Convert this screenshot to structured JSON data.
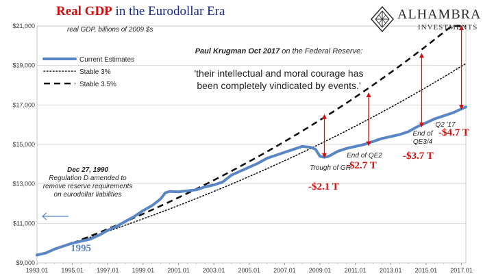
{
  "header": {
    "title_highlight": "Real GDP",
    "title_rest": " in the Eurodollar Era",
    "subtitle": "real GDP, billions of 2009 $s"
  },
  "logo": {
    "name": "ALHAMBRA",
    "sub": "INVESTMENTS",
    "icon": "diamond-emblem-icon"
  },
  "quote": {
    "author": "Paul Krugman Oct 2017",
    "context": " on the Federal Reserve:",
    "text": "'their intellectual and moral courage has been completely vindicated by events.'"
  },
  "note_1990": {
    "date": "Dec 27, 1990",
    "text": "Regulation D amended to remove reserve requirements on eurodollar liabilities"
  },
  "year_1995_label": "1995",
  "chart_data": {
    "type": "line",
    "title": "Real GDP in the Eurodollar Era",
    "subtitle": "real GDP, billions of 2009 $s",
    "xlabel": "",
    "ylabel": "",
    "xlim": [
      "1993.01",
      "2017.01"
    ],
    "ylim": [
      9000,
      21000
    ],
    "x_tick_labels": [
      "1993.01",
      "1995.01",
      "1997.01",
      "1999.01",
      "2001.01",
      "2003.01",
      "2005.01",
      "2007.01",
      "2009.01",
      "2011.01",
      "2013.01",
      "2015.01",
      "2017.01"
    ],
    "y_tick_labels": [
      "$9,000",
      "$11,000",
      "$13,000",
      "$15,000",
      "$17,000",
      "$19,000",
      "$21,000"
    ],
    "y_ticks": [
      9000,
      11000,
      13000,
      15000,
      17000,
      19000,
      21000
    ],
    "grid": true,
    "legend_position": "top-left",
    "series": [
      {
        "name": "Current Estimates",
        "style": "solid",
        "color": "#5a86c4",
        "x": [
          1993.0,
          1993.5,
          1994.0,
          1994.5,
          1995.0,
          1995.5,
          1996.0,
          1996.5,
          1997.0,
          1997.5,
          1998.0,
          1998.5,
          1999.0,
          1999.5,
          2000.0,
          2000.25,
          2000.5,
          2001.0,
          2001.5,
          2002.0,
          2002.5,
          2003.0,
          2003.5,
          2004.0,
          2004.5,
          2005.0,
          2005.5,
          2006.0,
          2006.5,
          2007.0,
          2007.5,
          2008.0,
          2008.5,
          2008.75,
          2009.0,
          2009.25,
          2009.5,
          2010.0,
          2010.5,
          2011.0,
          2011.5,
          2012.0,
          2012.5,
          2013.0,
          2013.5,
          2014.0,
          2014.5,
          2015.0,
          2015.5,
          2016.0,
          2016.5,
          2017.0,
          2017.25
        ],
        "y": [
          9400,
          9500,
          9700,
          9850,
          10000,
          10100,
          10200,
          10400,
          10650,
          10850,
          11100,
          11350,
          11650,
          11900,
          12250,
          12550,
          12620,
          12600,
          12650,
          12700,
          12850,
          12950,
          13100,
          13450,
          13650,
          13850,
          14050,
          14300,
          14450,
          14600,
          14750,
          14900,
          14850,
          14750,
          14400,
          14350,
          14400,
          14650,
          14800,
          14900,
          15000,
          15150,
          15300,
          15400,
          15500,
          15650,
          15900,
          16100,
          16300,
          16450,
          16600,
          16800,
          16900
        ]
      },
      {
        "name": "Stable 3%",
        "style": "dotted",
        "color": "#111111",
        "x": [
          1995,
          2017.25
        ],
        "y": [
          10000,
          19100
        ]
      },
      {
        "name": "Stable 3.5%",
        "style": "dashed",
        "color": "#111111",
        "x": [
          1995,
          2017.25
        ],
        "y": [
          10000,
          21600
        ]
      }
    ],
    "gap_annotations": [
      {
        "label": "Trough of GR",
        "value": "-$2.1 T",
        "x": 2009.25,
        "y_low": 14350,
        "y_high": 16500
      },
      {
        "label": "End of QE2",
        "value": "-$2.7 T",
        "x": 2011.75,
        "y_low": 14950,
        "y_high": 17600
      },
      {
        "label": "End of QE3/4",
        "value": "-$3.7 T",
        "x": 2014.75,
        "y_low": 15900,
        "y_high": 19600
      },
      {
        "label": "Q2 '17",
        "value": "-$4.7 T",
        "x": 2017.0,
        "y_low": 16800,
        "y_high": 21000
      }
    ]
  }
}
